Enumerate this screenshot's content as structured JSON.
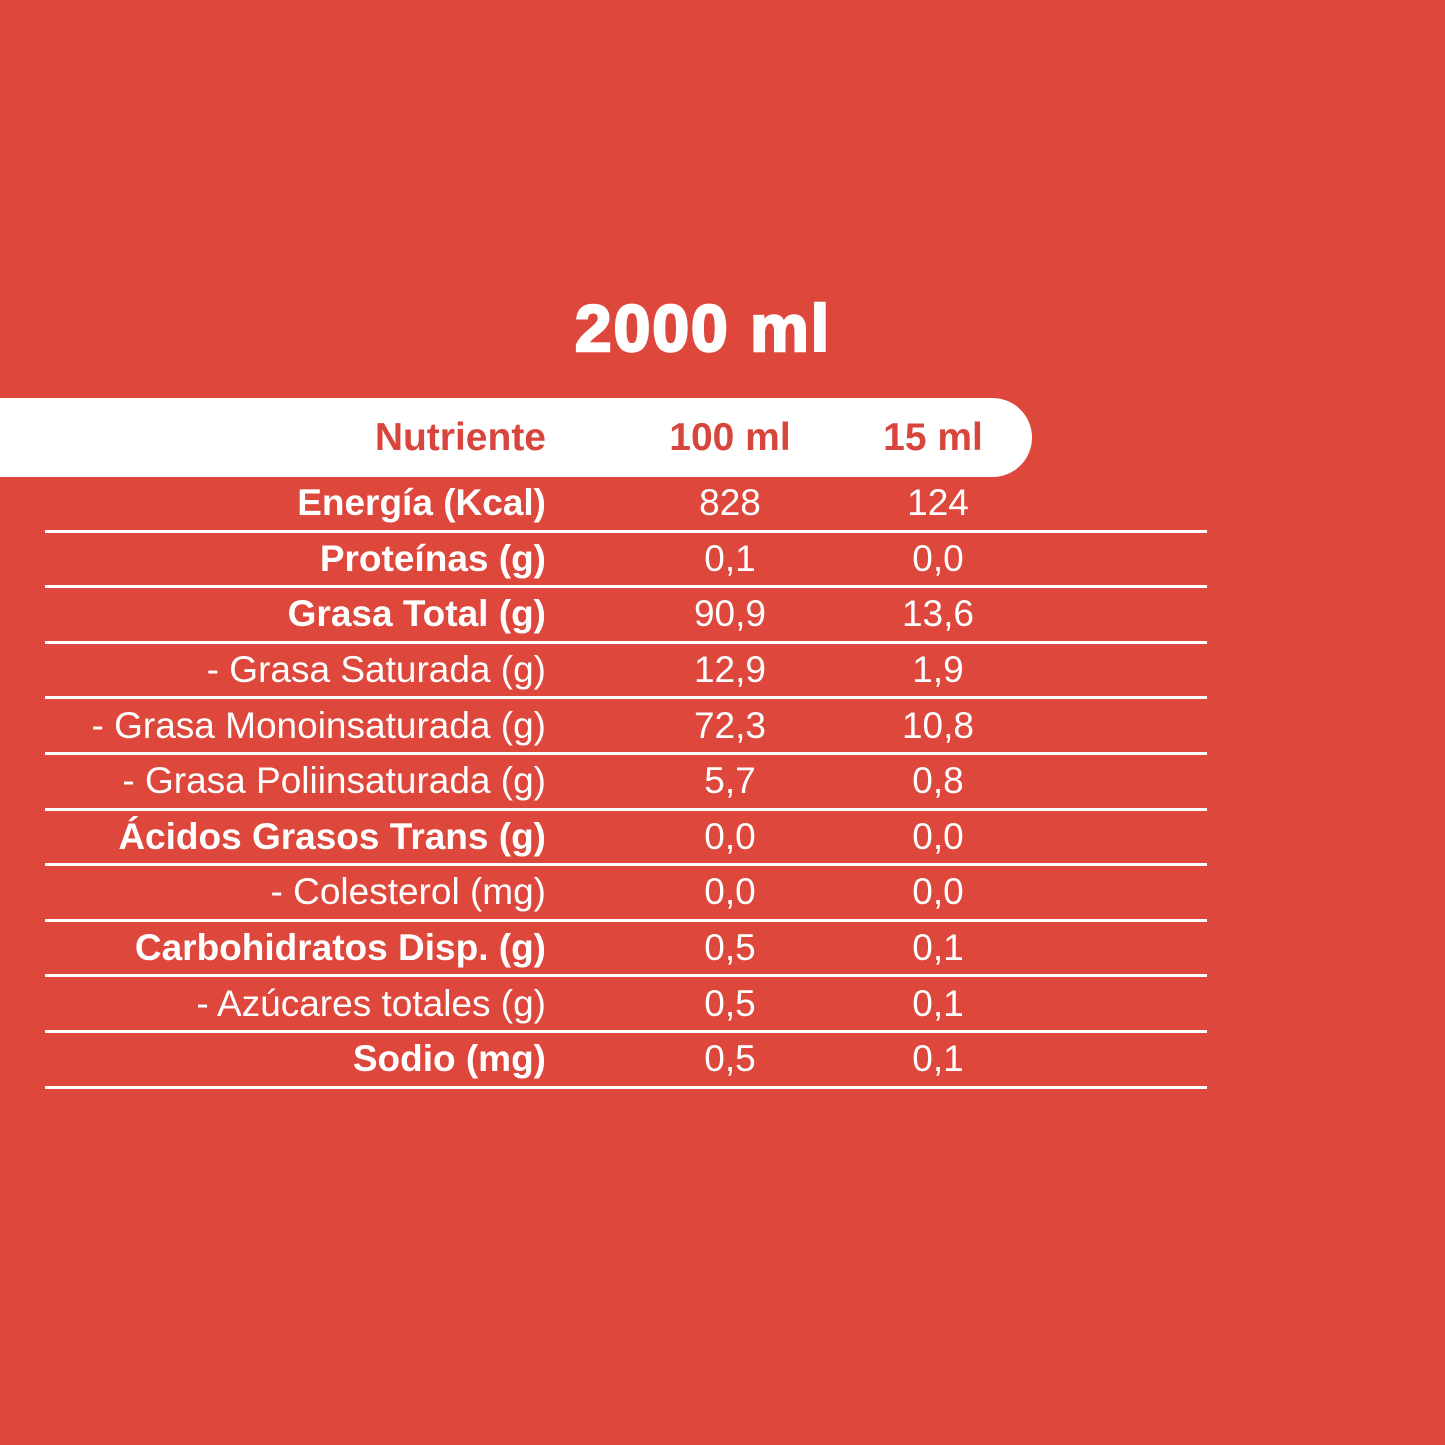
{
  "page": {
    "title": "2000 ml",
    "background_color": "#DD473C",
    "accent_red": "#D8453C",
    "text_color": "#FFFFFF"
  },
  "table": {
    "header": {
      "nutrient": "Nutriente",
      "col_100ml": "100 ml",
      "col_15ml": "15 ml"
    },
    "rows": [
      {
        "label": "Energía (Kcal)",
        "bold": true,
        "per_100ml": "828",
        "per_15ml": "124"
      },
      {
        "label": "Proteínas (g)",
        "bold": true,
        "per_100ml": "0,1",
        "per_15ml": "0,0"
      },
      {
        "label": "Grasa Total (g)",
        "bold": true,
        "per_100ml": "90,9",
        "per_15ml": "13,6"
      },
      {
        "label": "- Grasa Saturada (g)",
        "bold": false,
        "per_100ml": "12,9",
        "per_15ml": "1,9"
      },
      {
        "label": "- Grasa Monoinsaturada (g)",
        "bold": false,
        "per_100ml": "72,3",
        "per_15ml": "10,8"
      },
      {
        "label": "- Grasa Poliinsaturada (g)",
        "bold": false,
        "per_100ml": "5,7",
        "per_15ml": "0,8"
      },
      {
        "label": "Ácidos Grasos Trans (g)",
        "bold": true,
        "per_100ml": "0,0",
        "per_15ml": "0,0"
      },
      {
        "label": "- Colesterol (mg)",
        "bold": false,
        "per_100ml": "0,0",
        "per_15ml": "0,0"
      },
      {
        "label": "Carbohidratos Disp. (g)",
        "bold": true,
        "per_100ml": "0,5",
        "per_15ml": "0,1"
      },
      {
        "label": "- Azúcares totales (g)",
        "bold": false,
        "per_100ml": "0,5",
        "per_15ml": "0,1"
      },
      {
        "label": "Sodio (mg)",
        "bold": true,
        "per_100ml": "0,5",
        "per_15ml": "0,1"
      }
    ]
  }
}
